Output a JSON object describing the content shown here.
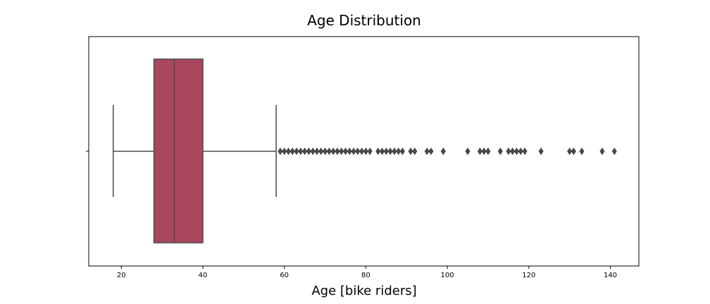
{
  "chart_data": {
    "type": "boxplot",
    "title": "Age Distribution",
    "xlabel": "Age [bike riders]",
    "ylabel": "",
    "xlim": [
      12,
      147
    ],
    "xticks": [
      20,
      40,
      60,
      80,
      100,
      120,
      140
    ],
    "grid": false,
    "box": {
      "whisker_low": 18,
      "q1": 28,
      "median": 33,
      "q3": 40,
      "whisker_high": 58,
      "fill_color": "#a8475e",
      "line_color": "#4a4a4a"
    },
    "outliers": [
      59,
      60,
      61,
      62,
      63,
      64,
      65,
      66,
      67,
      68,
      69,
      70,
      71,
      72,
      73,
      74,
      75,
      76,
      77,
      78,
      79,
      80,
      81,
      83,
      84,
      85,
      86,
      87,
      88,
      89,
      91,
      92,
      95,
      96,
      99,
      105,
      108,
      109,
      110,
      113,
      115,
      116,
      117,
      118,
      119,
      123,
      130,
      131,
      133,
      138,
      141
    ]
  }
}
